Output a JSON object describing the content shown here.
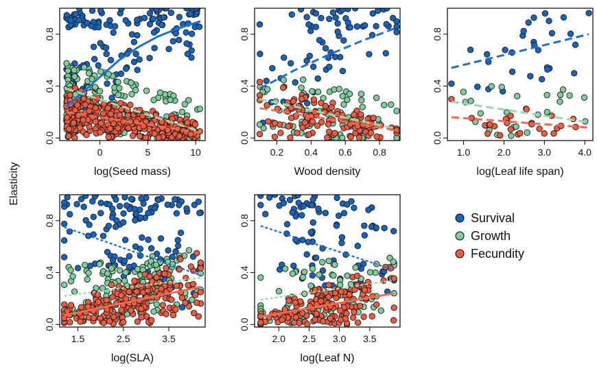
{
  "figure": {
    "ylabel": "Elasticity"
  },
  "legend": {
    "entries": [
      {
        "name": "Survival",
        "color": "#1565c0"
      },
      {
        "name": "Growth",
        "color": "#7ccf9a"
      },
      {
        "name": "Fecundity",
        "color": "#ef5b3e"
      }
    ]
  },
  "chart_data": [
    {
      "type": "scatter",
      "xlabel": "log(Seed mass)",
      "xlim": [
        -4.2,
        11
      ],
      "xticks": [
        0,
        5,
        10
      ],
      "xtick_labels": [
        "0",
        "5",
        "10"
      ],
      "ylim": [
        -0.02,
        1.0
      ],
      "yticks": [
        0.0,
        0.4,
        0.8
      ],
      "ytick_labels": [
        "0.0",
        "0.4",
        "0.8"
      ],
      "series": [
        {
          "name": "Survival",
          "n": 160,
          "xr": [
            -3.5,
            10.5
          ],
          "yr": [
            0.05,
            1.0
          ],
          "trend": {
            "style": "solid",
            "x": [
              -3.5,
              -2,
              0,
              2,
              4,
              6,
              8,
              10.5
            ],
            "y": [
              0.24,
              0.34,
              0.47,
              0.6,
              0.7,
              0.78,
              0.84,
              0.9
            ]
          }
        },
        {
          "name": "Growth",
          "n": 170,
          "xr": [
            -3.5,
            10.5
          ],
          "yr": [
            0.0,
            0.88
          ],
          "trend": {
            "style": "dashed",
            "x": [
              -3.5,
              10.5
            ],
            "y": [
              0.38,
              0.05
            ]
          }
        },
        {
          "name": "Fecundity",
          "n": 380,
          "xr": [
            -3.5,
            10.5
          ],
          "yr": [
            0.0,
            0.6
          ],
          "trend": {
            "style": "dashed",
            "x": [
              -3.5,
              10.5
            ],
            "y": [
              0.2,
              0.04
            ]
          }
        }
      ]
    },
    {
      "type": "scatter",
      "xlabel": "Wood density",
      "xlim": [
        0.07,
        0.92
      ],
      "xticks": [
        0.2,
        0.4,
        0.6,
        0.8
      ],
      "xtick_labels": [
        "0.2",
        "0.4",
        "0.6",
        "0.8"
      ],
      "ylim": [
        -0.02,
        1.0
      ],
      "yticks": [
        0.0,
        0.4,
        0.8
      ],
      "ytick_labels": [
        "0.0",
        "0.4",
        "0.8"
      ],
      "series": [
        {
          "name": "Survival",
          "n": 75,
          "xr": [
            0.1,
            0.9
          ],
          "yr": [
            0.1,
            1.0
          ],
          "trend": {
            "style": "dashed",
            "x": [
              0.1,
              0.3,
              0.5,
              0.7,
              0.9
            ],
            "y": [
              0.38,
              0.52,
              0.64,
              0.75,
              0.85
            ]
          }
        },
        {
          "name": "Growth",
          "n": 75,
          "xr": [
            0.1,
            0.9
          ],
          "yr": [
            0.0,
            0.95
          ],
          "trend": {
            "style": "dashed",
            "x": [
              0.1,
              0.9
            ],
            "y": [
              0.3,
              0.07
            ]
          }
        },
        {
          "name": "Fecundity",
          "n": 120,
          "xr": [
            0.1,
            0.9
          ],
          "yr": [
            0.0,
            0.7
          ],
          "trend": {
            "style": "dashed",
            "x": [
              0.1,
              0.9
            ],
            "y": [
              0.23,
              0.06
            ]
          }
        }
      ]
    },
    {
      "type": "scatter",
      "xlabel": "log(Leaf life span)",
      "xlim": [
        0.6,
        4.2
      ],
      "xticks": [
        1.0,
        2.0,
        3.0,
        4.0
      ],
      "xtick_labels": [
        "1.0",
        "2.0",
        "3.0",
        "4.0"
      ],
      "ylim": [
        -0.02,
        1.0
      ],
      "yticks": [
        0.0,
        0.4,
        0.8
      ],
      "ytick_labels": [
        "0.0",
        "0.4",
        "0.8"
      ],
      "series": [
        {
          "name": "Survival",
          "n": 30,
          "xr": [
            0.7,
            4.1
          ],
          "yr": [
            0.05,
            1.0
          ],
          "trend": {
            "style": "dashed",
            "x": [
              0.7,
              4.1
            ],
            "y": [
              0.54,
              0.8
            ]
          }
        },
        {
          "name": "Growth",
          "n": 28,
          "xr": [
            0.7,
            4.1
          ],
          "yr": [
            0.0,
            0.85
          ],
          "trend": {
            "style": "dashed",
            "x": [
              0.7,
              4.1
            ],
            "y": [
              0.28,
              0.12
            ]
          }
        },
        {
          "name": "Fecundity",
          "n": 25,
          "xr": [
            0.7,
            4.1
          ],
          "yr": [
            0.0,
            0.45
          ],
          "trend": {
            "style": "dashed",
            "x": [
              0.7,
              4.1
            ],
            "y": [
              0.16,
              0.08
            ]
          }
        }
      ]
    },
    {
      "type": "scatter",
      "xlabel": "log(SLA)",
      "xlim": [
        1.1,
        4.3
      ],
      "xticks": [
        1.5,
        2.5,
        3.5
      ],
      "xtick_labels": [
        "1.5",
        "2.5",
        "3.5"
      ],
      "ylim": [
        -0.02,
        1.0
      ],
      "yticks": [
        0.0,
        0.4,
        0.8
      ],
      "ytick_labels": [
        "0.0",
        "0.4",
        "0.8"
      ],
      "series": [
        {
          "name": "Survival",
          "n": 130,
          "xr": [
            1.2,
            4.2
          ],
          "yr": [
            0.1,
            1.0
          ],
          "trend": {
            "style": "dotted",
            "x": [
              1.2,
              4.2
            ],
            "y": [
              0.75,
              0.38
            ]
          }
        },
        {
          "name": "Growth",
          "n": 120,
          "xr": [
            1.2,
            4.2
          ],
          "yr": [
            0.0,
            0.75
          ],
          "trend": {
            "style": "dotted",
            "x": [
              1.2,
              4.2
            ],
            "y": [
              0.22,
              0.36
            ]
          }
        },
        {
          "name": "Fecundity",
          "n": 230,
          "xr": [
            1.2,
            4.2
          ],
          "yr": [
            0.0,
            0.55
          ],
          "trend": {
            "style": "solid",
            "x": [
              1.2,
              4.2
            ],
            "y": [
              0.07,
              0.29
            ]
          }
        }
      ]
    },
    {
      "type": "scatter",
      "xlabel": "log(Leaf N)",
      "xlim": [
        1.6,
        4.0
      ],
      "xticks": [
        2.0,
        2.5,
        3.0,
        3.5
      ],
      "xtick_labels": [
        "2.0",
        "2.5",
        "3.0",
        "3.5"
      ],
      "ylim": [
        -0.02,
        1.0
      ],
      "yticks": [
        0.0,
        0.4,
        0.8
      ],
      "ytick_labels": [
        "0.0",
        "0.4",
        "0.8"
      ],
      "series": [
        {
          "name": "Survival",
          "n": 90,
          "xr": [
            1.7,
            3.9
          ],
          "yr": [
            0.15,
            1.0
          ],
          "trend": {
            "style": "dotted",
            "x": [
              1.7,
              3.9
            ],
            "y": [
              0.76,
              0.42
            ]
          }
        },
        {
          "name": "Growth",
          "n": 90,
          "xr": [
            1.7,
            3.9
          ],
          "yr": [
            0.0,
            0.7
          ],
          "trend": {
            "style": "dotted",
            "x": [
              1.7,
              3.9
            ],
            "y": [
              0.19,
              0.34
            ]
          }
        },
        {
          "name": "Fecundity",
          "n": 170,
          "xr": [
            1.7,
            3.9
          ],
          "yr": [
            0.0,
            0.5
          ],
          "trend": {
            "style": "solid",
            "x": [
              1.7,
              3.9
            ],
            "y": [
              0.06,
              0.24
            ]
          }
        }
      ]
    }
  ]
}
